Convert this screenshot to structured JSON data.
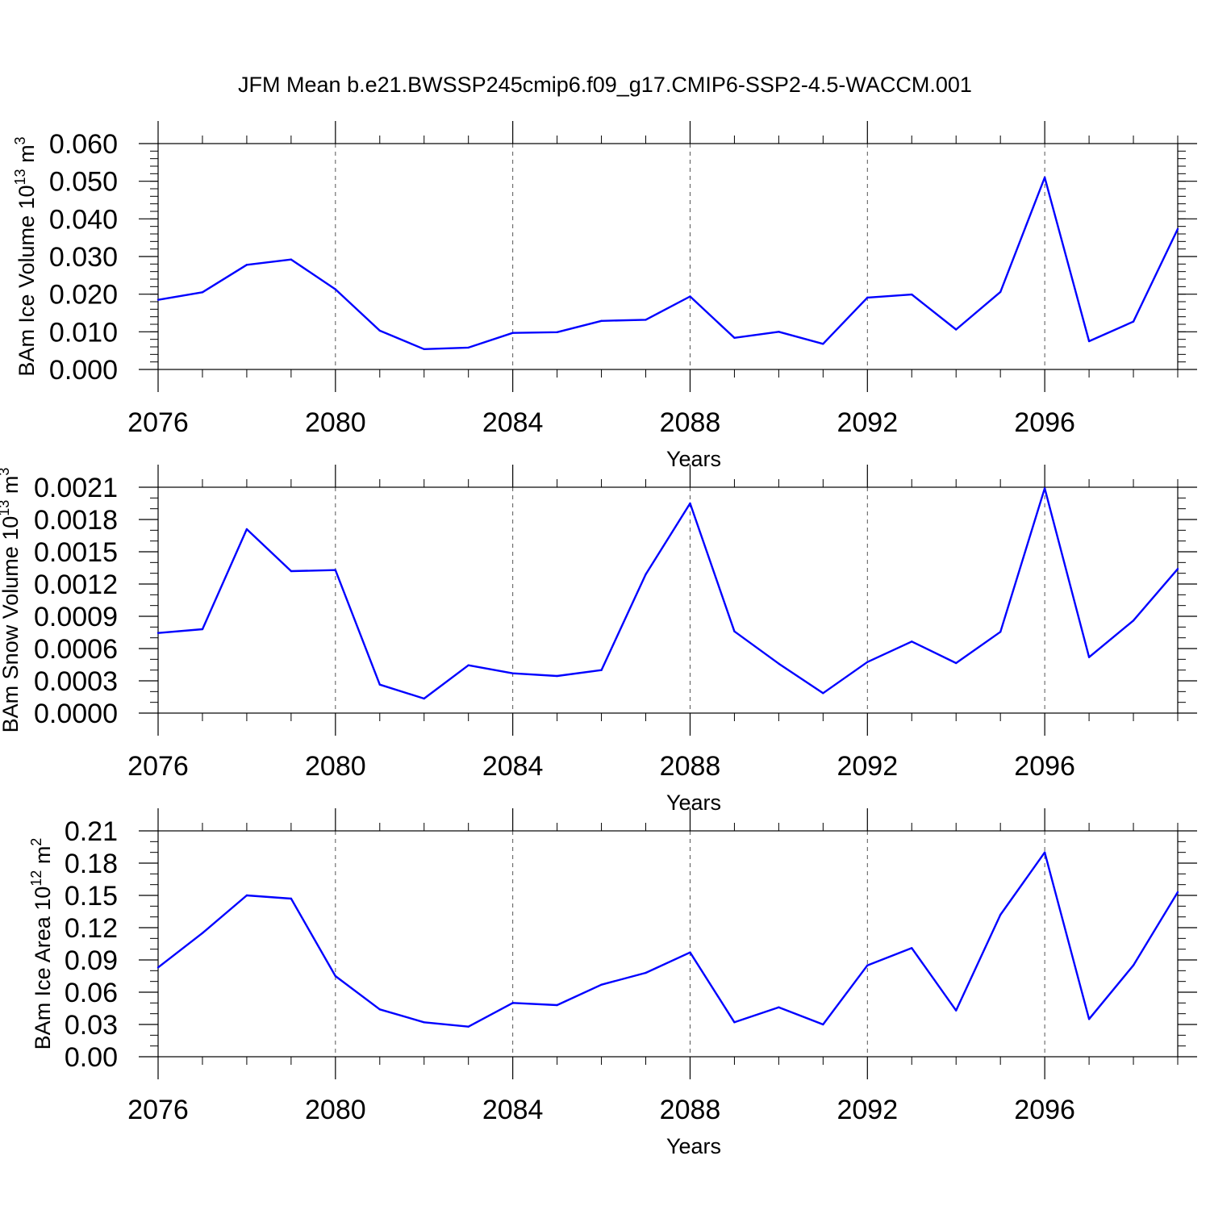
{
  "title": "JFM Mean b.e21.BWSSP245cmip6.f09_g17.CMIP6-SSP2-4.5-WACCM.001",
  "colors": {
    "line": "#0000ff",
    "axis": "#000000",
    "grid": "#555555"
  },
  "chart_data": [
    {
      "type": "line",
      "ylabel_main": "BAm Ice Volume 10",
      "ylabel_exp": "13",
      "ylabel_unit": " m",
      "ylabel_unit_exp": "3",
      "xlabel": "Years",
      "xlim": [
        2076,
        2099
      ],
      "ylim": [
        0,
        0.06
      ],
      "x_ticks": [
        "2076",
        "2080",
        "2084",
        "2088",
        "2092",
        "2096"
      ],
      "y_ticks": [
        "0.000",
        "0.010",
        "0.020",
        "0.030",
        "0.040",
        "0.050",
        "0.060"
      ],
      "y_tick_values": [
        0,
        0.01,
        0.02,
        0.03,
        0.04,
        0.05,
        0.06
      ],
      "y_minor_step": 0.002,
      "vertical_grid": "dashed at labeled years",
      "x": [
        2076,
        2077,
        2078,
        2079,
        2080,
        2081,
        2082,
        2083,
        2084,
        2085,
        2086,
        2087,
        2088,
        2089,
        2090,
        2091,
        2092,
        2093,
        2094,
        2095,
        2096,
        2097,
        2098,
        2099
      ],
      "y": [
        0.0185,
        0.0205,
        0.0278,
        0.0292,
        0.0213,
        0.0103,
        0.0054,
        0.0058,
        0.0097,
        0.0099,
        0.0129,
        0.0132,
        0.0194,
        0.0084,
        0.01,
        0.0068,
        0.0191,
        0.0199,
        0.0106,
        0.0206,
        0.051,
        0.0075,
        0.0127,
        0.0373
      ]
    },
    {
      "type": "line",
      "ylabel_main": "BAm Snow Volume 10",
      "ylabel_exp": "13",
      "ylabel_unit": " m",
      "ylabel_unit_exp": "3",
      "xlabel": "Years",
      "xlim": [
        2076,
        2099
      ],
      "ylim": [
        0,
        0.0021
      ],
      "x_ticks": [
        "2076",
        "2080",
        "2084",
        "2088",
        "2092",
        "2096"
      ],
      "y_ticks": [
        "0.0000",
        "0.0003",
        "0.0006",
        "0.0009",
        "0.0012",
        "0.0015",
        "0.0018",
        "0.0021"
      ],
      "y_tick_values": [
        0,
        0.0003,
        0.0006,
        0.0009,
        0.0012,
        0.0015,
        0.0018,
        0.0021
      ],
      "y_minor_step": 0.0001,
      "vertical_grid": "dashed at labeled years",
      "x": [
        2076,
        2077,
        2078,
        2079,
        2080,
        2081,
        2082,
        2083,
        2084,
        2085,
        2086,
        2087,
        2088,
        2089,
        2090,
        2091,
        2092,
        2093,
        2094,
        2095,
        2096,
        2097,
        2098,
        2099
      ],
      "y": [
        0.000745,
        0.00078,
        0.00171,
        0.00132,
        0.00133,
        0.000265,
        0.000135,
        0.000445,
        0.00037,
        0.000345,
        0.0004,
        0.00129,
        0.00195,
        0.00076,
        0.00046,
        0.000185,
        0.000475,
        0.000665,
        0.000465,
        0.000755,
        0.00209,
        0.00052,
        0.00086,
        0.00134
      ]
    },
    {
      "type": "line",
      "ylabel_main": "BAm Ice Area 10",
      "ylabel_exp": "12",
      "ylabel_unit": " m",
      "ylabel_unit_exp": "2",
      "xlabel": "Years",
      "xlim": [
        2076,
        2099
      ],
      "ylim": [
        0,
        0.21
      ],
      "x_ticks": [
        "2076",
        "2080",
        "2084",
        "2088",
        "2092",
        "2096"
      ],
      "y_ticks": [
        "0.00",
        "0.03",
        "0.06",
        "0.09",
        "0.12",
        "0.15",
        "0.18",
        "0.21"
      ],
      "y_tick_values": [
        0,
        0.03,
        0.06,
        0.09,
        0.12,
        0.15,
        0.18,
        0.21
      ],
      "y_minor_step": 0.01,
      "vertical_grid": "dashed at labeled years",
      "x": [
        2076,
        2077,
        2078,
        2079,
        2080,
        2081,
        2082,
        2083,
        2084,
        2085,
        2086,
        2087,
        2088,
        2089,
        2090,
        2091,
        2092,
        2093,
        2094,
        2095,
        2096,
        2097,
        2098,
        2099
      ],
      "y": [
        0.083,
        0.115,
        0.15,
        0.147,
        0.075,
        0.044,
        0.032,
        0.028,
        0.05,
        0.048,
        0.067,
        0.078,
        0.097,
        0.032,
        0.046,
        0.03,
        0.085,
        0.101,
        0.043,
        0.132,
        0.19,
        0.035,
        0.085,
        0.153
      ]
    }
  ]
}
